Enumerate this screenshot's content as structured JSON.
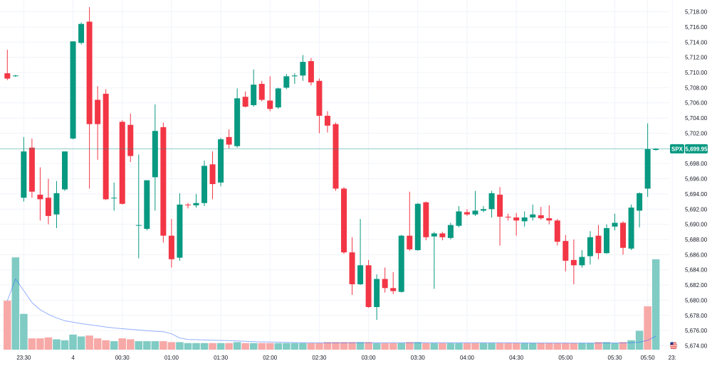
{
  "chart_data": {
    "type": "candlestick",
    "symbol": "SPX",
    "last_price": 5699.95,
    "last_price_label": "5,699.95",
    "colors": {
      "up": "#089981",
      "down": "#f23645",
      "volume_up": "#80cbc4",
      "volume_down": "#f7a9a7",
      "price_line": "#089981",
      "grid": "#f0f3fa",
      "ma_line": "#2962ff"
    },
    "y_axis": {
      "range": [
        5673,
        5719
      ],
      "ticks": [
        {
          "value": 5718,
          "label": "5,718.00"
        },
        {
          "value": 5716,
          "label": "5,716.00"
        },
        {
          "value": 5714,
          "label": "5,714.00"
        },
        {
          "value": 5712,
          "label": "5,712.00"
        },
        {
          "value": 5710,
          "label": "5,710.00"
        },
        {
          "value": 5708,
          "label": "5,708.00"
        },
        {
          "value": 5706,
          "label": "5,706.00"
        },
        {
          "value": 5704,
          "label": "5,704.00"
        },
        {
          "value": 5702,
          "label": "5,702.00"
        },
        {
          "value": 5700,
          "label": "5,700.00"
        },
        {
          "value": 5698,
          "label": "5,698.00"
        },
        {
          "value": 5696,
          "label": "5,696.00"
        },
        {
          "value": 5694,
          "label": "5,694.00"
        },
        {
          "value": 5692,
          "label": "5,692.00"
        },
        {
          "value": 5690,
          "label": "5,690.00"
        },
        {
          "value": 5688,
          "label": "5,688.00"
        },
        {
          "value": 5686,
          "label": "5,686.00"
        },
        {
          "value": 5684,
          "label": "5,684.00"
        },
        {
          "value": 5682,
          "label": "5,682.00"
        },
        {
          "value": 5680,
          "label": "5,680.00"
        },
        {
          "value": 5678,
          "label": "5,678.00"
        },
        {
          "value": 5676,
          "label": "5,676.00"
        },
        {
          "value": 5674,
          "label": "5,674.00"
        }
      ]
    },
    "x_axis": {
      "ticks": [
        {
          "index": 2,
          "label": "23:30"
        },
        {
          "index": 8,
          "label": "4"
        },
        {
          "index": 14,
          "label": "00:30"
        },
        {
          "index": 20,
          "label": "01:00"
        },
        {
          "index": 26,
          "label": "01:30"
        },
        {
          "index": 32,
          "label": "02:00"
        },
        {
          "index": 38,
          "label": "02:30"
        },
        {
          "index": 44,
          "label": "03:00"
        },
        {
          "index": 50,
          "label": "03:30"
        },
        {
          "index": 56,
          "label": "04:00"
        },
        {
          "index": 62,
          "label": "04:30"
        },
        {
          "index": 68,
          "label": "05:00"
        },
        {
          "index": 74,
          "label": "05:30"
        },
        {
          "index": 78,
          "label": "05:50"
        },
        {
          "index": 81,
          "label": "23:"
        }
      ]
    },
    "candles": [
      {
        "o": 5709.9,
        "h": 5713.0,
        "l": 5709.0,
        "c": 5709.2
      },
      {
        "o": 5709.6,
        "h": 5709.7,
        "l": 5709.4,
        "c": 5709.6
      },
      {
        "o": 5693.5,
        "h": 5701.5,
        "l": 5693.0,
        "c": 5699.6
      },
      {
        "o": 5700.1,
        "h": 5701.3,
        "l": 5693.5,
        "c": 5694.3
      },
      {
        "o": 5693.9,
        "h": 5697.5,
        "l": 5690.5,
        "c": 5693.3
      },
      {
        "o": 5693.5,
        "h": 5696.0,
        "l": 5690.0,
        "c": 5691.1
      },
      {
        "o": 5691.3,
        "h": 5695.7,
        "l": 5689.5,
        "c": 5694.1
      },
      {
        "o": 5694.6,
        "h": 5699.6,
        "l": 5694.4,
        "c": 5699.6
      },
      {
        "o": 5701.3,
        "h": 5714.1,
        "l": 5701.2,
        "c": 5714.1
      },
      {
        "o": 5713.9,
        "h": 5716.6,
        "l": 5713.7,
        "c": 5716.4
      },
      {
        "o": 5716.7,
        "h": 5718.6,
        "l": 5694.7,
        "c": 5703.2
      },
      {
        "o": 5706.4,
        "h": 5708.2,
        "l": 5698.5,
        "c": 5703.2
      },
      {
        "o": 5707.2,
        "h": 5707.8,
        "l": 5693.2,
        "c": 5693.3
      },
      {
        "o": 5693.5,
        "h": 5695.5,
        "l": 5691.8,
        "c": 5693.5
      },
      {
        "o": 5703.5,
        "h": 5703.7,
        "l": 5692.6,
        "c": 5692.7
      },
      {
        "o": 5703.1,
        "h": 5704.6,
        "l": 5698.2,
        "c": 5699.0
      },
      {
        "o": 5689.9,
        "h": 5699.2,
        "l": 5685.5,
        "c": 5689.9
      },
      {
        "o": 5689.4,
        "h": 5695.8,
        "l": 5689.2,
        "c": 5695.8
      },
      {
        "o": 5696.2,
        "h": 5705.8,
        "l": 5691.8,
        "c": 5702.3
      },
      {
        "o": 5702.8,
        "h": 5703.4,
        "l": 5687.6,
        "c": 5688.5
      },
      {
        "o": 5688.5,
        "h": 5690.7,
        "l": 5684.3,
        "c": 5685.4
      },
      {
        "o": 5685.6,
        "h": 5694.1,
        "l": 5685.2,
        "c": 5692.6
      },
      {
        "o": 5692.6,
        "h": 5692.8,
        "l": 5692.1,
        "c": 5692.5
      },
      {
        "o": 5692.5,
        "h": 5694.0,
        "l": 5692.2,
        "c": 5692.8
      },
      {
        "o": 5692.8,
        "h": 5698.4,
        "l": 5692.4,
        "c": 5697.7
      },
      {
        "o": 5697.9,
        "h": 5699.6,
        "l": 5693.3,
        "c": 5695.3
      },
      {
        "o": 5695.5,
        "h": 5701.4,
        "l": 5695.0,
        "c": 5701.2
      },
      {
        "o": 5701.5,
        "h": 5702.5,
        "l": 5700.0,
        "c": 5700.5
      },
      {
        "o": 5700.3,
        "h": 5707.9,
        "l": 5700.1,
        "c": 5706.6
      },
      {
        "o": 5706.8,
        "h": 5707.5,
        "l": 5705.4,
        "c": 5705.5
      },
      {
        "o": 5705.7,
        "h": 5710.4,
        "l": 5705.5,
        "c": 5708.4
      },
      {
        "o": 5708.5,
        "h": 5708.9,
        "l": 5706.2,
        "c": 5706.4
      },
      {
        "o": 5706.3,
        "h": 5709.5,
        "l": 5704.9,
        "c": 5705.2
      },
      {
        "o": 5705.4,
        "h": 5708.0,
        "l": 5705.2,
        "c": 5707.9
      },
      {
        "o": 5708.0,
        "h": 5709.8,
        "l": 5707.8,
        "c": 5709.5
      },
      {
        "o": 5709.5,
        "h": 5709.9,
        "l": 5708.5,
        "c": 5709.6
      },
      {
        "o": 5709.6,
        "h": 5712.3,
        "l": 5708.9,
        "c": 5711.4
      },
      {
        "o": 5711.5,
        "h": 5711.9,
        "l": 5708.3,
        "c": 5708.7
      },
      {
        "o": 5708.9,
        "h": 5709.2,
        "l": 5702.0,
        "c": 5704.3
      },
      {
        "o": 5704.3,
        "h": 5704.9,
        "l": 5702.1,
        "c": 5703.0
      },
      {
        "o": 5703.2,
        "h": 5703.4,
        "l": 5694.4,
        "c": 5694.7
      },
      {
        "o": 5694.7,
        "h": 5694.9,
        "l": 5686.1,
        "c": 5686.3
      },
      {
        "o": 5686.3,
        "h": 5688.3,
        "l": 5680.7,
        "c": 5682.1
      },
      {
        "o": 5682.1,
        "h": 5690.7,
        "l": 5682.0,
        "c": 5684.6
      },
      {
        "o": 5684.6,
        "h": 5685.3,
        "l": 5679.0,
        "c": 5679.1
      },
      {
        "o": 5679.1,
        "h": 5683.4,
        "l": 5677.4,
        "c": 5682.8
      },
      {
        "o": 5682.8,
        "h": 5684.3,
        "l": 5681.0,
        "c": 5681.6
      },
      {
        "o": 5681.6,
        "h": 5683.7,
        "l": 5680.8,
        "c": 5681.2
      },
      {
        "o": 5681.1,
        "h": 5688.6,
        "l": 5681.0,
        "c": 5688.5
      },
      {
        "o": 5688.5,
        "h": 5694.3,
        "l": 5686.5,
        "c": 5686.7
      },
      {
        "o": 5686.6,
        "h": 5692.8,
        "l": 5686.5,
        "c": 5692.7
      },
      {
        "o": 5692.9,
        "h": 5693.0,
        "l": 5687.9,
        "c": 5688.3
      },
      {
        "o": 5688.4,
        "h": 5689.0,
        "l": 5681.5,
        "c": 5688.8
      },
      {
        "o": 5688.8,
        "h": 5689.0,
        "l": 5687.9,
        "c": 5688.3
      },
      {
        "o": 5688.2,
        "h": 5690.2,
        "l": 5688.0,
        "c": 5689.9
      },
      {
        "o": 5689.8,
        "h": 5692.4,
        "l": 5689.6,
        "c": 5691.7
      },
      {
        "o": 5691.6,
        "h": 5692.0,
        "l": 5691.1,
        "c": 5691.3
      },
      {
        "o": 5691.3,
        "h": 5694.4,
        "l": 5691.1,
        "c": 5691.8
      },
      {
        "o": 5691.8,
        "h": 5692.4,
        "l": 5691.6,
        "c": 5692.0
      },
      {
        "o": 5692.0,
        "h": 5694.4,
        "l": 5690.9,
        "c": 5694.1
      },
      {
        "o": 5693.9,
        "h": 5694.9,
        "l": 5687.2,
        "c": 5691.0
      },
      {
        "o": 5691.0,
        "h": 5691.4,
        "l": 5690.5,
        "c": 5690.9
      },
      {
        "o": 5690.9,
        "h": 5691.5,
        "l": 5688.5,
        "c": 5690.5
      },
      {
        "o": 5690.4,
        "h": 5691.7,
        "l": 5689.7,
        "c": 5690.9
      },
      {
        "o": 5690.9,
        "h": 5692.6,
        "l": 5690.5,
        "c": 5691.3
      },
      {
        "o": 5691.2,
        "h": 5692.3,
        "l": 5690.6,
        "c": 5690.8
      },
      {
        "o": 5690.8,
        "h": 5692.5,
        "l": 5690.0,
        "c": 5690.5
      },
      {
        "o": 5690.5,
        "h": 5690.7,
        "l": 5687.2,
        "c": 5687.7
      },
      {
        "o": 5687.8,
        "h": 5688.6,
        "l": 5683.8,
        "c": 5685.2
      },
      {
        "o": 5685.3,
        "h": 5688.0,
        "l": 5682.1,
        "c": 5684.6
      },
      {
        "o": 5684.6,
        "h": 5686.6,
        "l": 5684.3,
        "c": 5685.7
      },
      {
        "o": 5685.8,
        "h": 5689.1,
        "l": 5684.7,
        "c": 5688.3
      },
      {
        "o": 5688.5,
        "h": 5689.9,
        "l": 5685.4,
        "c": 5686.2
      },
      {
        "o": 5686.2,
        "h": 5690.0,
        "l": 5686.1,
        "c": 5689.5
      },
      {
        "o": 5689.7,
        "h": 5691.4,
        "l": 5689.2,
        "c": 5690.2
      },
      {
        "o": 5690.2,
        "h": 5690.4,
        "l": 5686.0,
        "c": 5686.9
      },
      {
        "o": 5686.8,
        "h": 5692.6,
        "l": 5686.6,
        "c": 5692.2
      },
      {
        "o": 5691.8,
        "h": 5694.2,
        "l": 5689.6,
        "c": 5694.1
      },
      {
        "o": 5694.7,
        "h": 5703.3,
        "l": 5693.6,
        "c": 5699.9
      },
      {
        "o": 5699.8,
        "h": 5700.0,
        "l": 5699.7,
        "c": 5699.95
      }
    ],
    "volume": [
      {
        "v": 26,
        "up": false
      },
      {
        "v": 49,
        "up": true
      },
      {
        "v": 19,
        "up": true
      },
      {
        "v": 6,
        "up": false
      },
      {
        "v": 6,
        "up": false
      },
      {
        "v": 6.5,
        "up": false
      },
      {
        "v": 5.5,
        "up": true
      },
      {
        "v": 5,
        "up": true
      },
      {
        "v": 8,
        "up": true
      },
      {
        "v": 7,
        "up": true
      },
      {
        "v": 7.5,
        "up": false
      },
      {
        "v": 6,
        "up": false
      },
      {
        "v": 5,
        "up": false
      },
      {
        "v": 4.5,
        "up": true
      },
      {
        "v": 6,
        "up": false
      },
      {
        "v": 5.5,
        "up": false
      },
      {
        "v": 4.5,
        "up": true
      },
      {
        "v": 4.5,
        "up": true
      },
      {
        "v": 4.5,
        "up": true
      },
      {
        "v": 4.5,
        "up": false
      },
      {
        "v": 4,
        "up": false
      },
      {
        "v": 4,
        "up": true
      },
      {
        "v": 3.5,
        "up": true
      },
      {
        "v": 3.5,
        "up": true
      },
      {
        "v": 3.5,
        "up": true
      },
      {
        "v": 3.5,
        "up": false
      },
      {
        "v": 3.5,
        "up": true
      },
      {
        "v": 3.5,
        "up": false
      },
      {
        "v": 4,
        "up": true
      },
      {
        "v": 3.5,
        "up": false
      },
      {
        "v": 3.5,
        "up": true
      },
      {
        "v": 3.5,
        "up": false
      },
      {
        "v": 3.5,
        "up": false
      },
      {
        "v": 3.5,
        "up": true
      },
      {
        "v": 3.5,
        "up": true
      },
      {
        "v": 3.5,
        "up": true
      },
      {
        "v": 3.5,
        "up": true
      },
      {
        "v": 3.5,
        "up": false
      },
      {
        "v": 3.5,
        "up": false
      },
      {
        "v": 4,
        "up": false
      },
      {
        "v": 4,
        "up": false
      },
      {
        "v": 4,
        "up": false
      },
      {
        "v": 4,
        "up": false
      },
      {
        "v": 4,
        "up": true
      },
      {
        "v": 4,
        "up": false
      },
      {
        "v": 3.5,
        "up": true
      },
      {
        "v": 3.5,
        "up": false
      },
      {
        "v": 3.5,
        "up": false
      },
      {
        "v": 3.5,
        "up": true
      },
      {
        "v": 4,
        "up": false
      },
      {
        "v": 4,
        "up": true
      },
      {
        "v": 3.5,
        "up": false
      },
      {
        "v": 3.5,
        "up": true
      },
      {
        "v": 3.5,
        "up": false
      },
      {
        "v": 3.5,
        "up": true
      },
      {
        "v": 3.5,
        "up": true
      },
      {
        "v": 3.5,
        "up": false
      },
      {
        "v": 3.5,
        "up": false
      },
      {
        "v": 3.5,
        "up": true
      },
      {
        "v": 3.5,
        "up": true
      },
      {
        "v": 3.5,
        "up": false
      },
      {
        "v": 3.5,
        "up": false
      },
      {
        "v": 3.5,
        "up": false
      },
      {
        "v": 3.5,
        "up": true
      },
      {
        "v": 3.5,
        "up": true
      },
      {
        "v": 3.5,
        "up": false
      },
      {
        "v": 3.5,
        "up": false
      },
      {
        "v": 3.5,
        "up": false
      },
      {
        "v": 3.5,
        "up": false
      },
      {
        "v": 3.5,
        "up": false
      },
      {
        "v": 3.5,
        "up": true
      },
      {
        "v": 3.5,
        "up": true
      },
      {
        "v": 4,
        "up": false
      },
      {
        "v": 4,
        "up": true
      },
      {
        "v": 3.5,
        "up": true
      },
      {
        "v": 4,
        "up": false
      },
      {
        "v": 5,
        "up": true
      },
      {
        "v": 10,
        "up": true
      },
      {
        "v": 23,
        "up": false
      },
      {
        "v": 48,
        "up": true
      }
    ]
  }
}
